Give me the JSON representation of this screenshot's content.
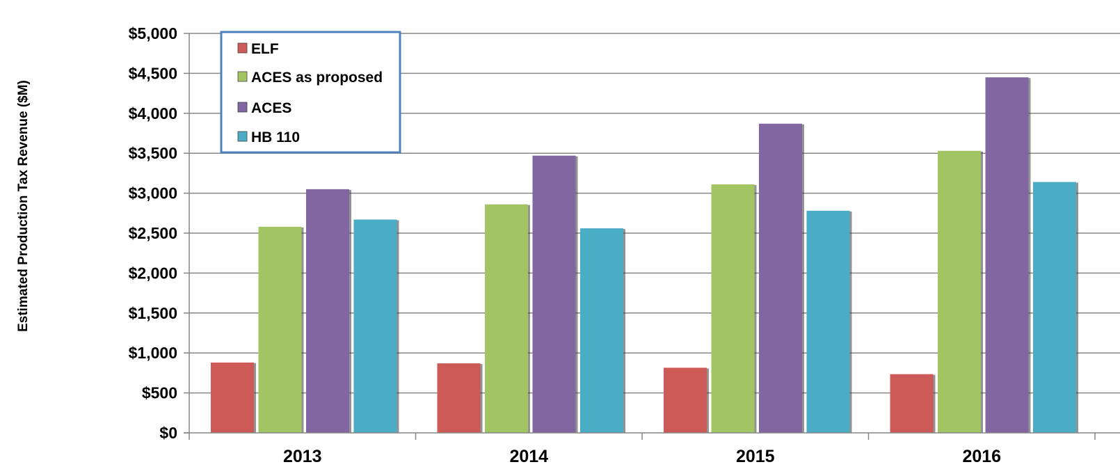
{
  "chart_data": {
    "type": "bar",
    "title": "",
    "xlabel": "",
    "ylabel": "Estimated Production Tax Revenue ($M)",
    "categories": [
      "2013",
      "2014",
      "2015",
      "2016"
    ],
    "ylim": [
      0,
      5000
    ],
    "yticks": [
      0,
      500,
      1000,
      1500,
      2000,
      2500,
      3000,
      3500,
      4000,
      4500,
      5000
    ],
    "ytick_labels": [
      "$0",
      "$500",
      "$1,000",
      "$1,500",
      "$2,000",
      "$2,500",
      "$3,000",
      "$3,500",
      "$4,000",
      "$4,500",
      "$5,000"
    ],
    "grid": true,
    "legend_position": "top-left",
    "series": [
      {
        "name": "ELF",
        "color": "#cd5a57",
        "values": [
          880,
          870,
          815,
          735
        ]
      },
      {
        "name": "ACES as proposed",
        "color": "#a3c463",
        "values": [
          2580,
          2860,
          3110,
          3530
        ]
      },
      {
        "name": "ACES",
        "color": "#8166a1",
        "values": [
          3050,
          3470,
          3870,
          4450
        ]
      },
      {
        "name": "HB 110",
        "color": "#4aacc5",
        "values": [
          2670,
          2560,
          2780,
          3140
        ]
      }
    ]
  }
}
